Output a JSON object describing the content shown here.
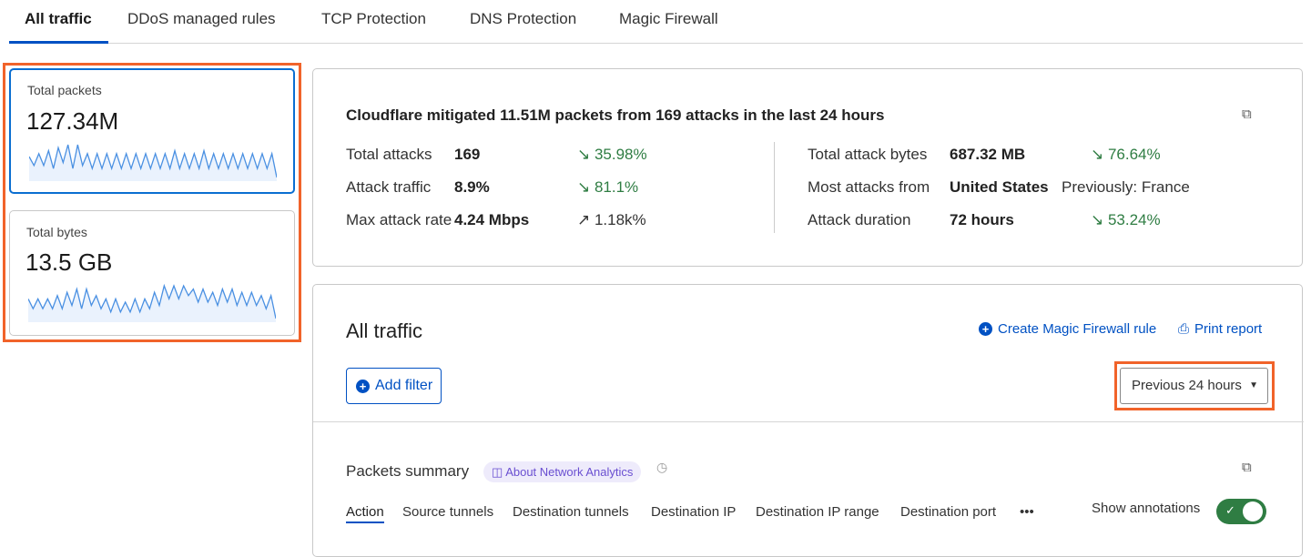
{
  "tabs": [
    "All traffic",
    "DDoS managed rules",
    "TCP Protection",
    "DNS Protection",
    "Magic Firewall"
  ],
  "left": {
    "packets": {
      "label": "Total packets",
      "value": "127.34M",
      "sparkline": [
        5,
        2,
        6,
        2,
        7,
        1,
        8,
        3,
        9,
        1,
        9,
        2,
        6,
        1,
        6,
        1,
        6,
        1,
        6,
        1,
        6,
        1,
        6,
        1,
        6,
        1,
        6,
        1,
        6,
        1,
        7,
        1,
        6,
        1,
        6,
        1,
        7,
        1,
        6,
        1,
        6,
        1,
        6,
        1,
        6,
        1,
        6,
        1,
        6,
        1,
        6,
        -2
      ]
    },
    "bytes": {
      "label": "Total bytes",
      "value": "13.5 GB",
      "sparkline": [
        4,
        1,
        4,
        1,
        4,
        1,
        5,
        1,
        6,
        2,
        7,
        1,
        7,
        2,
        5,
        1,
        4,
        0,
        4,
        0,
        3,
        0,
        4,
        0,
        4,
        1,
        6,
        2,
        8,
        4,
        8,
        4,
        8,
        5,
        7,
        3,
        7,
        3,
        6,
        2,
        7,
        3,
        7,
        2,
        6,
        2,
        6,
        2,
        5,
        1,
        5,
        -2
      ]
    },
    "line_color": "#4a90e2"
  },
  "summary": {
    "headline": "Cloudflare mitigated 11.51M packets from 169 attacks in the last 24 hours",
    "left_rows": [
      {
        "label": "Total attacks",
        "value": "169",
        "change": "35.98%",
        "dir": "down"
      },
      {
        "label": "Attack traffic",
        "value": "8.9%",
        "change": "81.1%",
        "dir": "down"
      },
      {
        "label": "Max attack rate",
        "value": "4.24 Mbps",
        "change": "1.18k%",
        "dir": "up"
      }
    ],
    "right_rows": [
      {
        "label": "Total attack bytes",
        "value": "687.32 MB",
        "change": "76.64%",
        "dir": "down"
      },
      {
        "label": "Most attacks from",
        "value": "United States",
        "change": "Previously: France",
        "dir": "none"
      },
      {
        "label": "Attack duration",
        "value": "72 hours",
        "change": "53.24%",
        "dir": "down"
      }
    ]
  },
  "traffic": {
    "title": "All traffic",
    "create_rule": "Create Magic Firewall rule",
    "print": "Print report",
    "add_filter": "Add filter",
    "time_range": "Previous 24 hours",
    "packets_summary": "Packets summary",
    "about": "About Network Analytics",
    "subtabs": [
      "Action",
      "Source tunnels",
      "Destination tunnels",
      "Destination IP",
      "Destination IP range",
      "Destination port"
    ],
    "more": "•••",
    "show_annotations": "Show annotations",
    "annotations_on": true
  }
}
